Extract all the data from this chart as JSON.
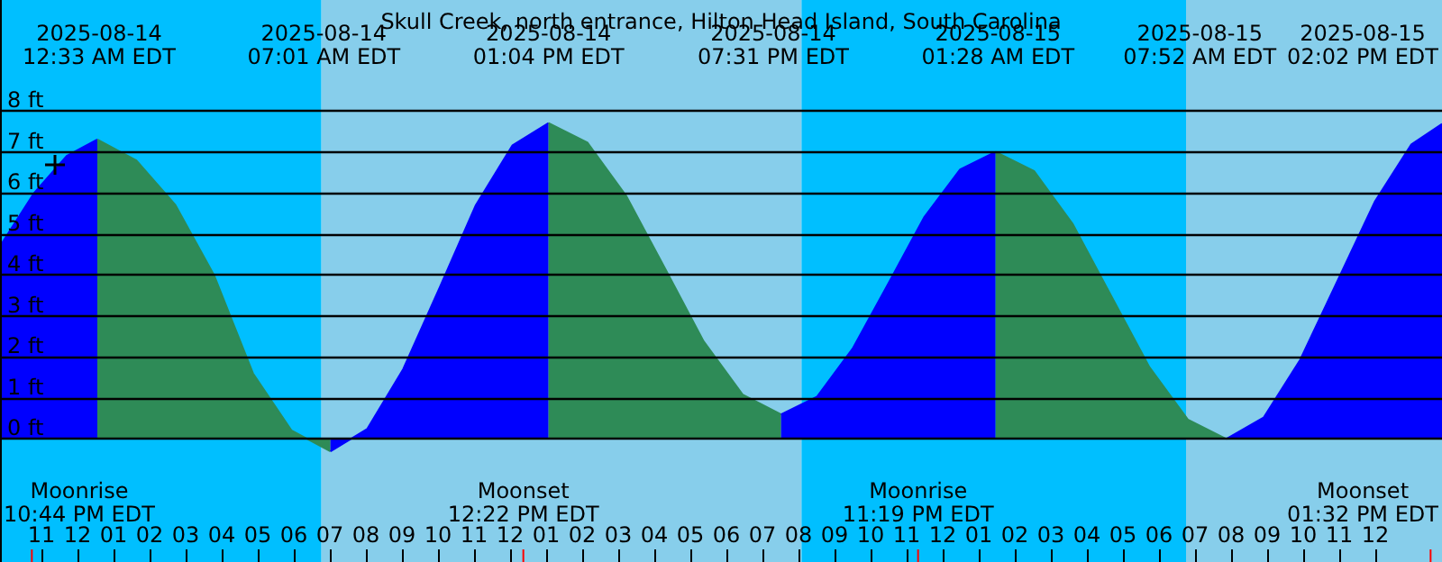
{
  "chart_data": {
    "type": "area",
    "title": "Skull Creek, north entrance, Hilton Head Island, South Carolina",
    "series": [
      {
        "color": "#0000ff",
        "x": [
          "2025-08-13T21:51",
          "2025-08-13T22:48",
          "2025-08-13T23:42",
          "2025-08-14T00:33"
        ],
        "values": [
          4.7,
          6.0,
          6.9,
          7.3
        ]
      },
      {
        "color": "#2e8b57",
        "x": [
          "2025-08-14T00:33",
          "2025-08-14T01:38",
          "2025-08-14T02:43",
          "2025-08-14T03:47",
          "2025-08-14T04:52",
          "2025-08-14T05:56",
          "2025-08-14T07:01"
        ],
        "values": [
          7.3,
          6.79,
          5.7,
          4.0,
          1.6,
          0.21,
          -0.3
        ]
      },
      {
        "color": "#0000ff",
        "x": [
          "2025-08-14T07:01",
          "2025-08-14T08:02",
          "2025-08-14T09:02",
          "2025-08-14T10:03",
          "2025-08-14T11:03",
          "2025-08-14T12:04",
          "2025-08-14T13:04"
        ],
        "values": [
          -0.3,
          0.24,
          1.7,
          3.7,
          5.7,
          7.16,
          7.7
        ]
      },
      {
        "color": "#2e8b57",
        "x": [
          "2025-08-14T13:04",
          "2025-08-14T14:09",
          "2025-08-14T15:13",
          "2025-08-14T16:18",
          "2025-08-14T17:22",
          "2025-08-14T18:27",
          "2025-08-14T19:31"
        ],
        "values": [
          7.7,
          7.22,
          5.93,
          4.15,
          2.38,
          1.08,
          0.6
        ]
      },
      {
        "color": "#0000ff",
        "x": [
          "2025-08-14T19:31",
          "2025-08-14T20:31",
          "2025-08-14T21:30",
          "2025-08-14T22:30",
          "2025-08-14T23:29",
          "2025-08-15T00:29",
          "2025-08-15T01:28"
        ],
        "values": [
          0.6,
          1.03,
          2.2,
          3.8,
          5.4,
          6.57,
          7.0
        ]
      },
      {
        "color": "#2e8b57",
        "x": [
          "2025-08-15T01:28",
          "2025-08-15T02:32",
          "2025-08-15T03:36",
          "2025-08-15T04:40",
          "2025-08-15T05:44",
          "2025-08-15T06:48",
          "2025-08-15T07:52"
        ],
        "values": [
          7.0,
          6.53,
          5.25,
          3.5,
          1.75,
          0.47,
          0.0
        ]
      },
      {
        "color": "#0000ff",
        "x": [
          "2025-08-15T07:52",
          "2025-08-15T08:54",
          "2025-08-15T09:55",
          "2025-08-15T10:57",
          "2025-08-15T11:59",
          "2025-08-15T13:00",
          "2025-08-15T13:51"
        ],
        "values": [
          0.0,
          0.52,
          1.93,
          3.85,
          5.78,
          7.18,
          7.68
        ]
      }
    ],
    "xlim": [
      "2025-08-13T21:51",
      "2025-08-15T13:51"
    ],
    "ylim": [
      -3,
      10.7
    ],
    "xticks": [
      {
        "value": "2025-08-13T23:00",
        "label": "11"
      },
      {
        "value": "2025-08-14T00:00",
        "label": "12"
      },
      {
        "value": "2025-08-14T01:00",
        "label": "01"
      },
      {
        "value": "2025-08-14T02:00",
        "label": "02"
      },
      {
        "value": "2025-08-14T03:00",
        "label": "03"
      },
      {
        "value": "2025-08-14T04:00",
        "label": "04"
      },
      {
        "value": "2025-08-14T05:00",
        "label": "05"
      },
      {
        "value": "2025-08-14T06:00",
        "label": "06"
      },
      {
        "value": "2025-08-14T07:00",
        "label": "07"
      },
      {
        "value": "2025-08-14T08:00",
        "label": "08"
      },
      {
        "value": "2025-08-14T09:00",
        "label": "09"
      },
      {
        "value": "2025-08-14T10:00",
        "label": "10"
      },
      {
        "value": "2025-08-14T11:00",
        "label": "11"
      },
      {
        "value": "2025-08-14T12:00",
        "label": "12"
      },
      {
        "value": "2025-08-14T13:00",
        "label": "01"
      },
      {
        "value": "2025-08-14T14:00",
        "label": "02"
      },
      {
        "value": "2025-08-14T15:00",
        "label": "03"
      },
      {
        "value": "2025-08-14T16:00",
        "label": "04"
      },
      {
        "value": "2025-08-14T17:00",
        "label": "05"
      },
      {
        "value": "2025-08-14T18:00",
        "label": "06"
      },
      {
        "value": "2025-08-14T19:00",
        "label": "07"
      },
      {
        "value": "2025-08-14T20:00",
        "label": "08"
      },
      {
        "value": "2025-08-14T21:00",
        "label": "09"
      },
      {
        "value": "2025-08-14T22:00",
        "label": "10"
      },
      {
        "value": "2025-08-14T23:00",
        "label": "11"
      },
      {
        "value": "2025-08-15T00:00",
        "label": "12"
      },
      {
        "value": "2025-08-15T01:00",
        "label": "01"
      },
      {
        "value": "2025-08-15T02:00",
        "label": "02"
      },
      {
        "value": "2025-08-15T03:00",
        "label": "03"
      },
      {
        "value": "2025-08-15T04:00",
        "label": "04"
      },
      {
        "value": "2025-08-15T05:00",
        "label": "05"
      },
      {
        "value": "2025-08-15T06:00",
        "label": "06"
      },
      {
        "value": "2025-08-15T07:00",
        "label": "07"
      },
      {
        "value": "2025-08-15T08:00",
        "label": "08"
      },
      {
        "value": "2025-08-15T09:00",
        "label": "09"
      },
      {
        "value": "2025-08-15T10:00",
        "label": "10"
      },
      {
        "value": "2025-08-15T11:00",
        "label": "11"
      },
      {
        "value": "2025-08-15T12:00",
        "label": "12"
      }
    ],
    "yticks": [
      {
        "value": 0,
        "label": "0 ft"
      },
      {
        "value": 1,
        "label": "1 ft"
      },
      {
        "value": 2,
        "label": "2 ft"
      },
      {
        "value": 3,
        "label": "3 ft"
      },
      {
        "value": 4,
        "label": "4 ft"
      },
      {
        "value": 5,
        "label": "5 ft"
      },
      {
        "value": 6,
        "label": "6 ft"
      },
      {
        "value": 7,
        "label": "7 ft"
      },
      {
        "value": 8,
        "label": "8 ft"
      }
    ],
    "grid": "y",
    "bands": [
      {
        "axis": "x",
        "from": "2025-08-13T21:51",
        "to": "2025-08-14T06:46",
        "color": "#00bfff"
      },
      {
        "axis": "x",
        "from": "2025-08-14T06:46",
        "to": "2025-08-14T20:05",
        "color": "#87ceeb"
      },
      {
        "axis": "x",
        "from": "2025-08-14T20:05",
        "to": "2025-08-15T06:45",
        "color": "#00bfff"
      },
      {
        "axis": "x",
        "from": "2025-08-15T06:45",
        "to": "2025-08-15T13:51",
        "color": "#87ceeb"
      }
    ],
    "ref_lines": [
      {
        "axis": "x",
        "value": "2025-08-13T22:44",
        "label": "Moonrise\n10:44 PM EDT",
        "color": "#ff0000"
      },
      {
        "axis": "x",
        "value": "2025-08-14T12:22",
        "label": "Moonset\n12:22 PM EDT",
        "color": "#ff0000"
      },
      {
        "axis": "x",
        "value": "2025-08-14T23:19",
        "label": "Moonrise\n11:19 PM EDT",
        "color": "#ff0000"
      },
      {
        "axis": "x",
        "value": "2025-08-15T13:32",
        "label": "Moonset\n01:32 PM EDT",
        "color": "#ff0000"
      }
    ],
    "annotations": [
      "2025-08-14\n12:33 AM EDT",
      "2025-08-14\n07:01 AM EDT",
      "2025-08-14\n01:04 PM EDT",
      "2025-08-14\n07:31 PM EDT",
      "2025-08-15\n01:28 AM EDT",
      "2025-08-15\n07:52 AM EDT",
      "2025-08-15\n02:02 PM EDT"
    ]
  }
}
